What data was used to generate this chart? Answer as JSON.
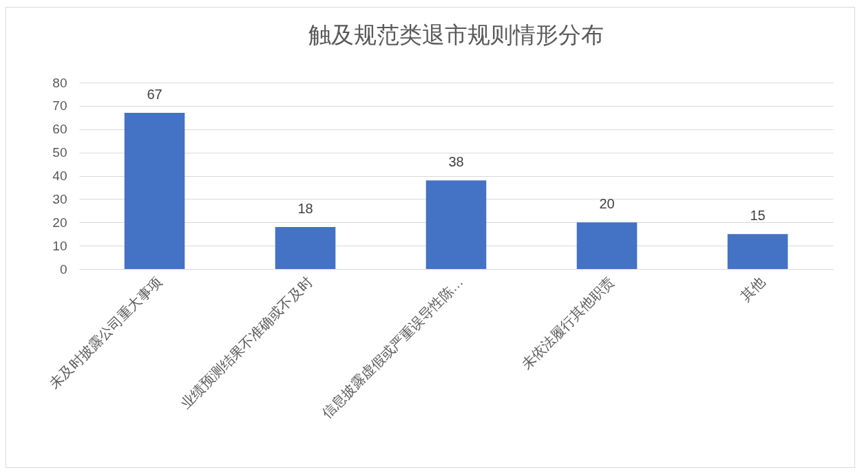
{
  "chart_data": {
    "type": "bar",
    "title": "触及规范类退市规则情形分布",
    "categories": [
      "未及时披露公司重大事项",
      "业绩预测结果不准确或不及时",
      "信息披露虚假或严重误导性陈…",
      "未依法履行其他职责",
      "其他"
    ],
    "values": [
      67,
      18,
      38,
      20,
      15
    ],
    "color": "#4472c4",
    "ylim": [
      0,
      80
    ],
    "yticks": [
      0,
      10,
      20,
      30,
      40,
      50,
      60,
      70,
      80
    ],
    "grid": true,
    "data_labels": true
  }
}
